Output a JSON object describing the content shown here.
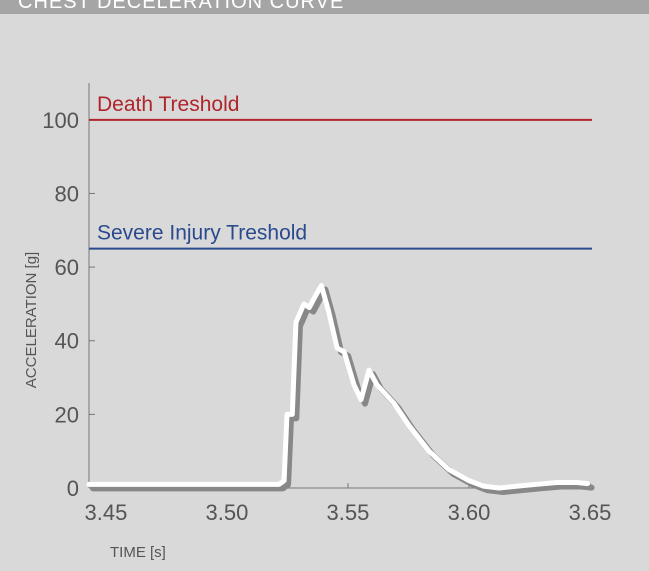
{
  "chart_data": {
    "type": "line",
    "title": "CHEST DECELERATION CURVE",
    "x_label": "TIME [s]",
    "y_label": "ACCELERATION [g]",
    "xlim": [
      3.443,
      3.65
    ],
    "xticks": [
      {
        "value": 3.45,
        "label": "3.45"
      },
      {
        "value": 3.5,
        "label": "3.50"
      },
      {
        "value": 3.55,
        "label": "3.55"
      },
      {
        "value": 3.6,
        "label": "3.60"
      },
      {
        "value": 3.65,
        "label": "3.65"
      }
    ],
    "ylim": [
      0,
      110
    ],
    "yticks": [
      0,
      20,
      40,
      60,
      80,
      100
    ],
    "thresholds": [
      {
        "label": "Death Treshold",
        "value": 100,
        "color": "#b0242b"
      },
      {
        "label": "Severe Injury Treshold",
        "value": 65,
        "color": "#2a4a8e"
      }
    ],
    "x": [
      3.443,
      3.5215,
      3.5236,
      3.5248,
      3.527,
      3.5285,
      3.5318,
      3.534,
      3.5364,
      3.539,
      3.542,
      3.5455,
      3.5484,
      3.5525,
      3.5554,
      3.5587,
      3.562,
      3.569,
      3.5752,
      3.5835,
      3.5917,
      3.6,
      3.606,
      3.6124,
      3.62,
      3.628,
      3.6364,
      3.6446,
      3.649
    ],
    "series": [
      {
        "color": "#ffffff",
        "values": [
          1,
          1,
          2,
          20,
          20,
          45,
          50,
          49,
          52,
          55,
          48,
          38,
          37,
          28,
          24,
          32,
          28,
          23,
          17,
          10,
          5,
          2,
          0.5,
          0,
          0.5,
          1,
          1.5,
          1.5,
          1.2
        ]
      }
    ]
  }
}
